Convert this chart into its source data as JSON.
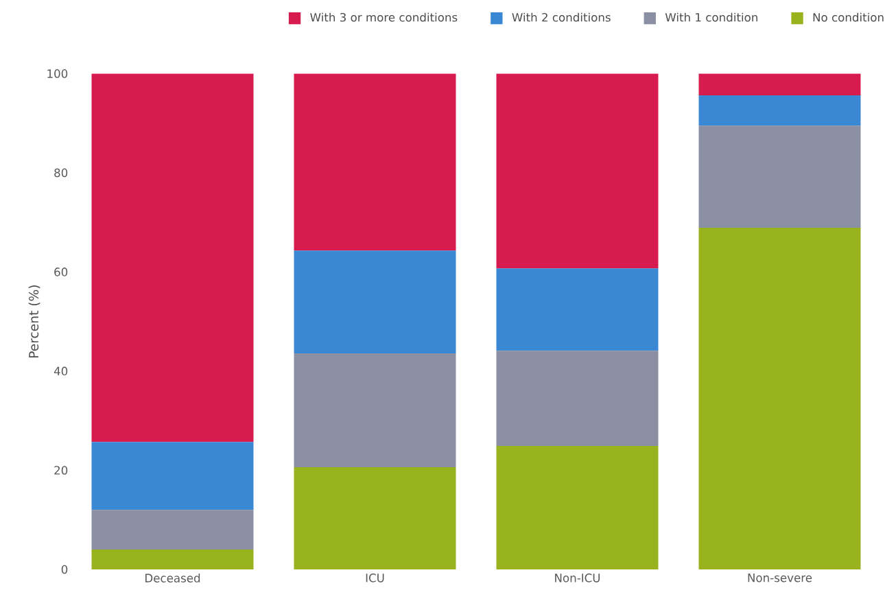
{
  "chart_data": {
    "type": "bar",
    "stacked": true,
    "ylabel": "Percent (%)",
    "categories": [
      "Deceased",
      "ICU",
      "Non-ICU",
      "Non-severe"
    ],
    "series": [
      {
        "name": "No condition",
        "color": "#98b31e",
        "values": [
          4.0,
          20.6,
          24.9,
          68.9
        ]
      },
      {
        "name": "With 1 condition",
        "color": "#8a8fa3",
        "values": [
          8.0,
          23.0,
          19.2,
          20.6
        ]
      },
      {
        "name": "With 2 conditions",
        "color": "#3a87d4",
        "values": [
          13.7,
          20.7,
          16.6,
          6.1
        ]
      },
      {
        "name": "With 3 or more conditions",
        "color": "#d81b4f",
        "values": [
          74.3,
          35.7,
          39.3,
          4.4
        ]
      }
    ],
    "ylim": [
      0,
      100
    ],
    "yticks": [
      0,
      20,
      40,
      60,
      80,
      100
    ],
    "grid": false,
    "legend": "top"
  }
}
